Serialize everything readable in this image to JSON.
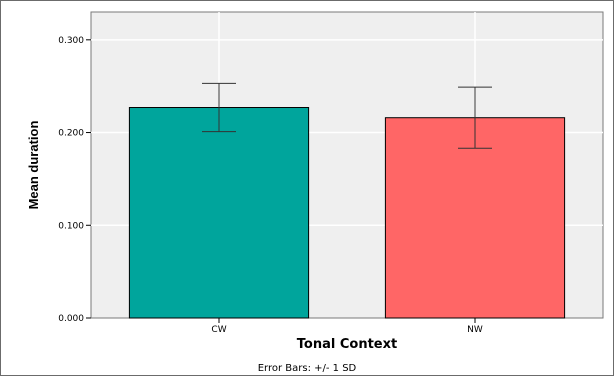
{
  "chart_data": {
    "type": "bar",
    "categories": [
      "CW",
      "NW"
    ],
    "values": [
      0.227,
      0.216
    ],
    "error_bars": {
      "lower": [
        0.201,
        0.183
      ],
      "upper": [
        0.253,
        0.249
      ]
    },
    "colors": [
      "#00a59c",
      "#ff6666"
    ],
    "xlabel": "Tonal Context",
    "ylabel": "Mean duration",
    "yticks": [
      "0.000",
      "0.100",
      "0.200",
      "0.300"
    ],
    "ytick_values": [
      0,
      0.1,
      0.2,
      0.3
    ],
    "ylim": [
      0,
      0.33
    ],
    "footnote": "Error Bars: +/- 1 SD",
    "grid": true,
    "background": "#efefef"
  }
}
